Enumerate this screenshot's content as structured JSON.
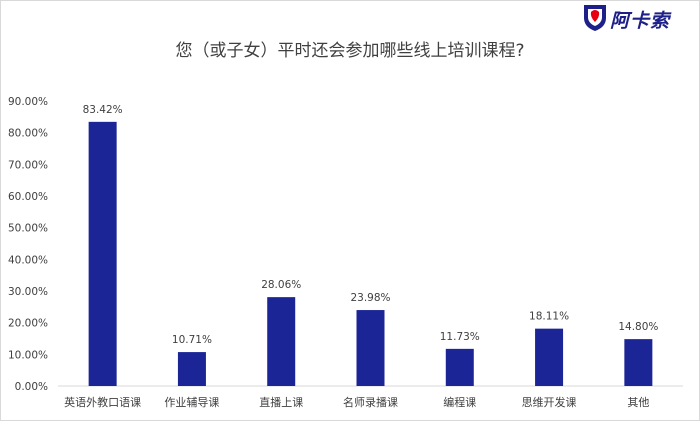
{
  "header": {
    "title": "您（或子女）平时还会参加哪些线上培训课程?"
  },
  "logo": {
    "text": "阿卡索",
    "brand_color": "#1d2088",
    "accent_color": "#e60012",
    "icon": "lion-shield-icon"
  },
  "chart_data": {
    "type": "bar",
    "title": "您（或子女）平时还会参加哪些线上培训课程?",
    "xlabel": "",
    "ylabel": "",
    "categories": [
      "英语外教口语课",
      "作业辅导课",
      "直播上课",
      "名师录播课",
      "编程课",
      "思维开发课",
      "其他"
    ],
    "values": [
      83.42,
      10.71,
      28.06,
      23.98,
      11.73,
      18.11,
      14.8
    ],
    "data_labels": [
      "83.42%",
      "10.71%",
      "28.06%",
      "23.98%",
      "11.73%",
      "18.11%",
      "14.80%"
    ],
    "ylim": [
      0,
      90
    ],
    "yticks": [
      0,
      10,
      20,
      30,
      40,
      50,
      60,
      70,
      80,
      90
    ],
    "ytick_labels": [
      "0.00%",
      "10.00%",
      "20.00%",
      "30.00%",
      "40.00%",
      "50.00%",
      "60.00%",
      "70.00%",
      "80.00%",
      "90.00%"
    ],
    "bar_color": "#1b2596",
    "grid": false,
    "legend": "none"
  }
}
